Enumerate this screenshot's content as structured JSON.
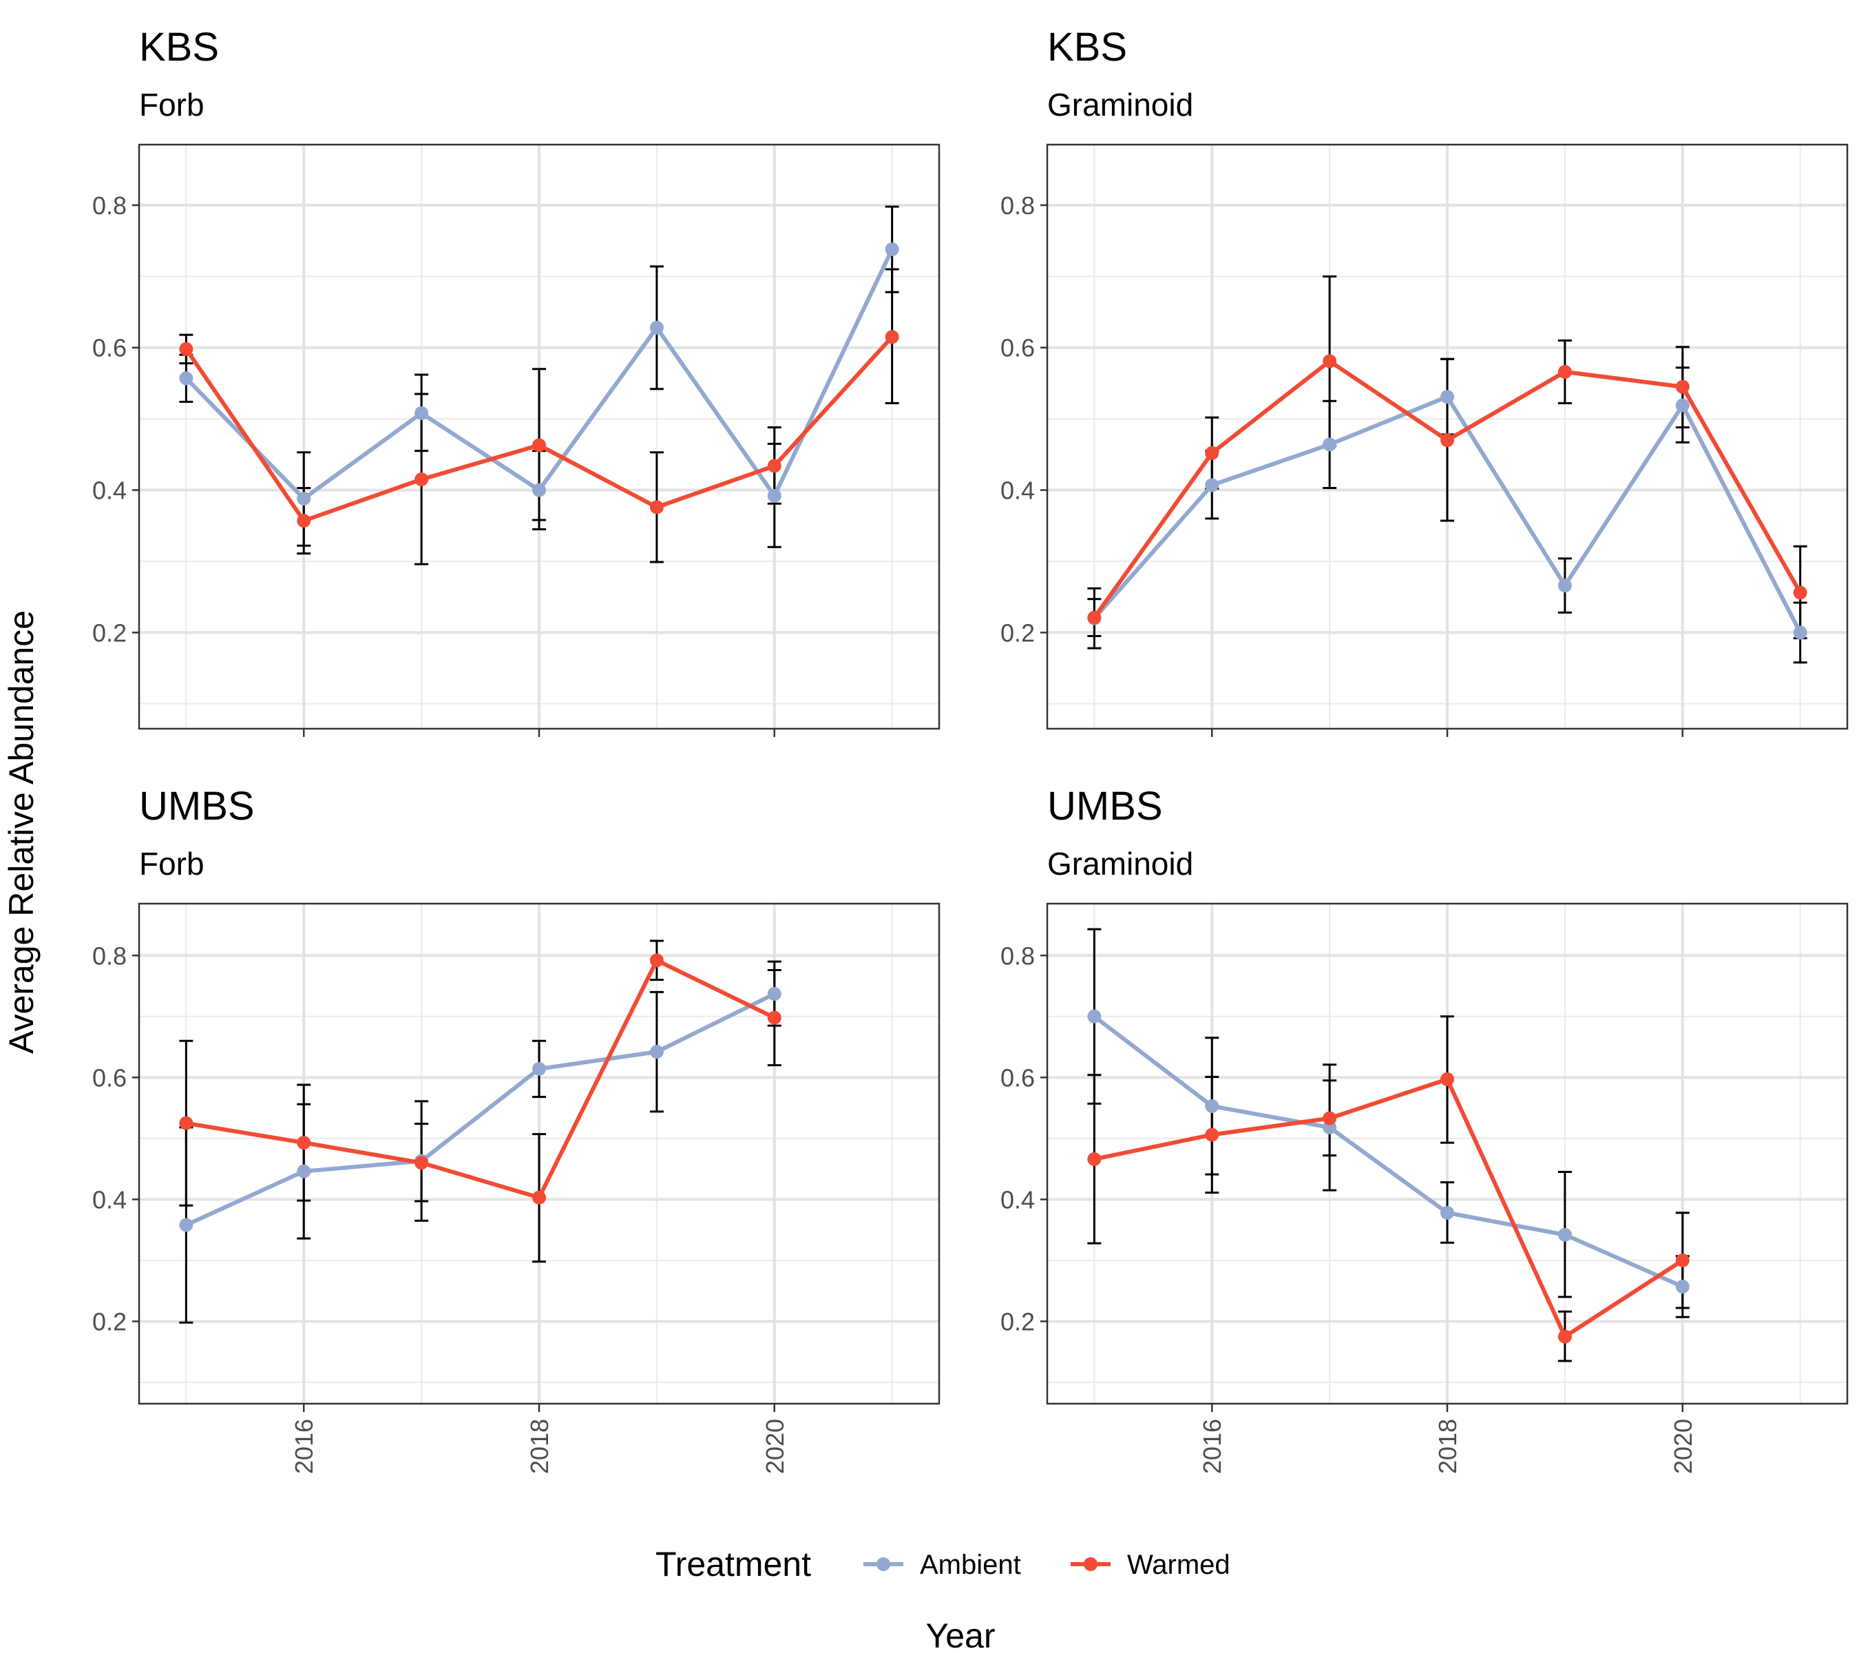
{
  "chart_data": {
    "type": "line",
    "xlabel": "Year",
    "ylabel": "Average Relative Abundance",
    "x_ticks": [
      2016,
      2018,
      2020
    ],
    "y_ticks": [
      0.2,
      0.4,
      0.6,
      0.8
    ],
    "y_tick_labels": [
      "0.2",
      "0.4",
      "0.6",
      "0.8"
    ],
    "xlim": [
      2014.6,
      2021.4
    ],
    "ylim": [
      0.065,
      0.885
    ],
    "grid": true,
    "legend": {
      "title": "Treatment",
      "position": "bottom",
      "entries": [
        {
          "name": "Ambient",
          "color": "#92A8D1"
        },
        {
          "name": "Warmed",
          "color": "#F14B35"
        }
      ]
    },
    "series_colors": {
      "Ambient": "#92A8D1",
      "Warmed": "#F14B35"
    },
    "panels": [
      {
        "title": "KBS",
        "subtitle": "Forb",
        "series": [
          {
            "name": "Ambient",
            "points": [
              {
                "x": 2015,
                "y": 0.557,
                "lo": 0.524,
                "hi": 0.59
              },
              {
                "x": 2016,
                "y": 0.388,
                "lo": 0.322,
                "hi": 0.453
              },
              {
                "x": 2017,
                "y": 0.508,
                "lo": 0.455,
                "hi": 0.562
              },
              {
                "x": 2018,
                "y": 0.4,
                "lo": 0.345,
                "hi": 0.455
              },
              {
                "x": 2019,
                "y": 0.628,
                "lo": 0.542,
                "hi": 0.714
              },
              {
                "x": 2020,
                "y": 0.392,
                "lo": 0.32,
                "hi": 0.465
              },
              {
                "x": 2021,
                "y": 0.738,
                "lo": 0.678,
                "hi": 0.798
              }
            ]
          },
          {
            "name": "Warmed",
            "points": [
              {
                "x": 2015,
                "y": 0.598,
                "lo": 0.578,
                "hi": 0.618
              },
              {
                "x": 2016,
                "y": 0.357,
                "lo": 0.311,
                "hi": 0.403
              },
              {
                "x": 2017,
                "y": 0.415,
                "lo": 0.296,
                "hi": 0.535
              },
              {
                "x": 2018,
                "y": 0.463,
                "lo": 0.358,
                "hi": 0.57
              },
              {
                "x": 2019,
                "y": 0.376,
                "lo": 0.299,
                "hi": 0.453
              },
              {
                "x": 2020,
                "y": 0.434,
                "lo": 0.381,
                "hi": 0.488
              },
              {
                "x": 2021,
                "y": 0.615,
                "lo": 0.522,
                "hi": 0.71
              }
            ]
          }
        ]
      },
      {
        "title": "KBS",
        "subtitle": "Graminoid",
        "series": [
          {
            "name": "Ambient",
            "points": [
              {
                "x": 2015,
                "y": 0.22,
                "lo": 0.178,
                "hi": 0.262
              },
              {
                "x": 2016,
                "y": 0.407,
                "lo": 0.36,
                "hi": 0.455
              },
              {
                "x": 2017,
                "y": 0.464,
                "lo": 0.403,
                "hi": 0.525
              },
              {
                "x": 2018,
                "y": 0.531,
                "lo": 0.478,
                "hi": 0.584
              },
              {
                "x": 2019,
                "y": 0.266,
                "lo": 0.228,
                "hi": 0.304
              },
              {
                "x": 2020,
                "y": 0.519,
                "lo": 0.467,
                "hi": 0.572
              },
              {
                "x": 2021,
                "y": 0.2,
                "lo": 0.158,
                "hi": 0.242
              }
            ]
          },
          {
            "name": "Warmed",
            "points": [
              {
                "x": 2015,
                "y": 0.221,
                "lo": 0.195,
                "hi": 0.247
              },
              {
                "x": 2016,
                "y": 0.452,
                "lo": 0.402,
                "hi": 0.502
              },
              {
                "x": 2017,
                "y": 0.581,
                "lo": 0.462,
                "hi": 0.7
              },
              {
                "x": 2018,
                "y": 0.47,
                "lo": 0.357,
                "hi": 0.584
              },
              {
                "x": 2019,
                "y": 0.566,
                "lo": 0.522,
                "hi": 0.61
              },
              {
                "x": 2020,
                "y": 0.545,
                "lo": 0.488,
                "hi": 0.601
              },
              {
                "x": 2021,
                "y": 0.256,
                "lo": 0.192,
                "hi": 0.321
              }
            ]
          }
        ]
      },
      {
        "title": "UMBS",
        "subtitle": "Forb",
        "series": [
          {
            "name": "Ambient",
            "points": [
              {
                "x": 2015,
                "y": 0.358,
                "lo": 0.198,
                "hi": 0.518
              },
              {
                "x": 2016,
                "y": 0.446,
                "lo": 0.336,
                "hi": 0.556
              },
              {
                "x": 2017,
                "y": 0.463,
                "lo": 0.365,
                "hi": 0.561
              },
              {
                "x": 2018,
                "y": 0.614,
                "lo": 0.568,
                "hi": 0.66
              },
              {
                "x": 2019,
                "y": 0.642,
                "lo": 0.544,
                "hi": 0.74
              },
              {
                "x": 2020,
                "y": 0.737,
                "lo": 0.685,
                "hi": 0.79
              }
            ]
          },
          {
            "name": "Warmed",
            "points": [
              {
                "x": 2015,
                "y": 0.525,
                "lo": 0.39,
                "hi": 0.66
              },
              {
                "x": 2016,
                "y": 0.493,
                "lo": 0.398,
                "hi": 0.588
              },
              {
                "x": 2017,
                "y": 0.46,
                "lo": 0.397,
                "hi": 0.524
              },
              {
                "x": 2018,
                "y": 0.403,
                "lo": 0.298,
                "hi": 0.507
              },
              {
                "x": 2019,
                "y": 0.792,
                "lo": 0.76,
                "hi": 0.824
              },
              {
                "x": 2020,
                "y": 0.698,
                "lo": 0.62,
                "hi": 0.776
              }
            ]
          }
        ]
      },
      {
        "title": "UMBS",
        "subtitle": "Graminoid",
        "series": [
          {
            "name": "Ambient",
            "points": [
              {
                "x": 2015,
                "y": 0.7,
                "lo": 0.557,
                "hi": 0.843
              },
              {
                "x": 2016,
                "y": 0.553,
                "lo": 0.441,
                "hi": 0.665
              },
              {
                "x": 2017,
                "y": 0.518,
                "lo": 0.415,
                "hi": 0.621
              },
              {
                "x": 2018,
                "y": 0.378,
                "lo": 0.329,
                "hi": 0.428
              },
              {
                "x": 2019,
                "y": 0.342,
                "lo": 0.24,
                "hi": 0.445
              },
              {
                "x": 2020,
                "y": 0.257,
                "lo": 0.207,
                "hi": 0.307
              }
            ]
          },
          {
            "name": "Warmed",
            "points": [
              {
                "x": 2015,
                "y": 0.466,
                "lo": 0.328,
                "hi": 0.604
              },
              {
                "x": 2016,
                "y": 0.506,
                "lo": 0.411,
                "hi": 0.601
              },
              {
                "x": 2017,
                "y": 0.533,
                "lo": 0.472,
                "hi": 0.595
              },
              {
                "x": 2018,
                "y": 0.597,
                "lo": 0.493,
                "hi": 0.7
              },
              {
                "x": 2019,
                "y": 0.175,
                "lo": 0.135,
                "hi": 0.216
              },
              {
                "x": 2020,
                "y": 0.3,
                "lo": 0.222,
                "hi": 0.378
              }
            ]
          }
        ]
      }
    ]
  }
}
